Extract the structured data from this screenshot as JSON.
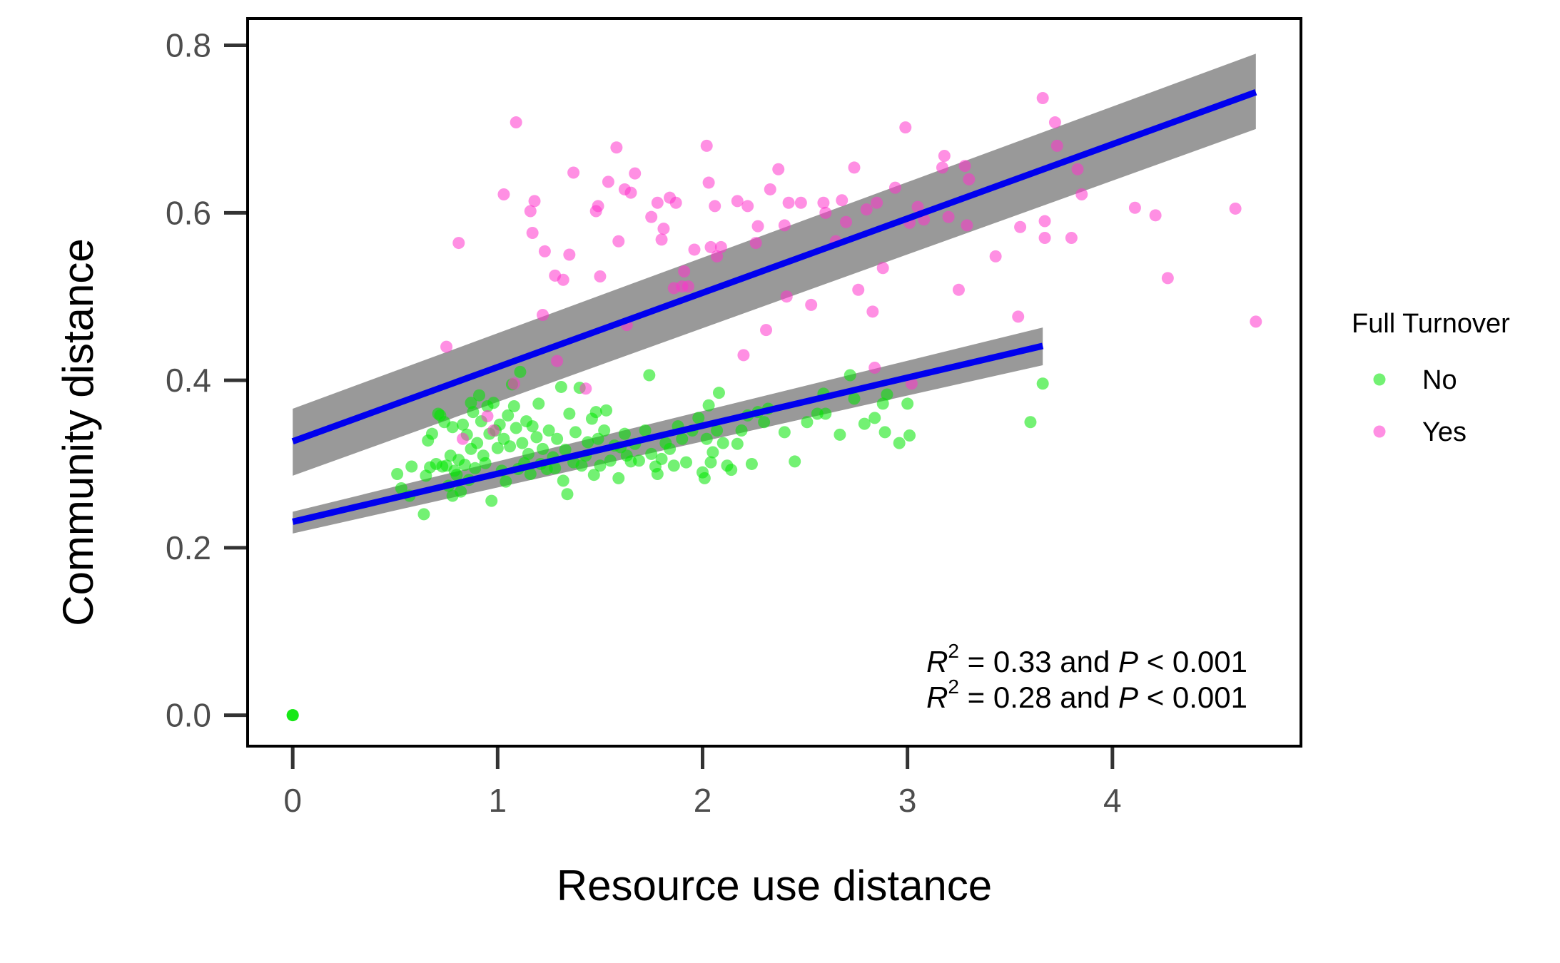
{
  "chart_data": {
    "type": "scatter",
    "xlabel": "Resource use distance",
    "ylabel": "Community distance",
    "xlim": [
      -0.22,
      4.92
    ],
    "ylim": [
      -0.037,
      0.832
    ],
    "xticks": [
      0,
      1,
      2,
      3,
      4
    ],
    "yticks": [
      0.0,
      0.2,
      0.4,
      0.6,
      0.8
    ],
    "xtick_labels": [
      "0",
      "1",
      "2",
      "3",
      "4"
    ],
    "ytick_labels": [
      "0.0",
      "0.2",
      "0.4",
      "0.6",
      "0.8"
    ],
    "grid": false,
    "legend": {
      "title": "Full Turnover",
      "placement": "right",
      "entries": [
        {
          "label": "No",
          "color": "#00e600"
        },
        {
          "label": "Yes",
          "color": "#ff33cc"
        }
      ]
    },
    "series": [
      {
        "name": "No",
        "color": "#00e600",
        "points": [
          [
            0.0,
            0.0
          ],
          [
            0.0,
            0.0
          ],
          [
            0.0,
            0.0
          ],
          [
            0.51,
            0.288
          ],
          [
            0.53,
            0.271
          ],
          [
            0.57,
            0.262
          ],
          [
            0.58,
            0.297
          ],
          [
            0.64,
            0.24
          ],
          [
            0.65,
            0.286
          ],
          [
            0.66,
            0.328
          ],
          [
            0.67,
            0.296
          ],
          [
            0.68,
            0.336
          ],
          [
            0.7,
            0.3
          ],
          [
            0.71,
            0.36
          ],
          [
            0.72,
            0.358
          ],
          [
            0.73,
            0.297
          ],
          [
            0.74,
            0.35
          ],
          [
            0.75,
            0.298
          ],
          [
            0.76,
            0.274
          ],
          [
            0.77,
            0.31
          ],
          [
            0.78,
            0.344
          ],
          [
            0.78,
            0.262
          ],
          [
            0.79,
            0.292
          ],
          [
            0.8,
            0.287
          ],
          [
            0.81,
            0.305
          ],
          [
            0.82,
            0.267
          ],
          [
            0.83,
            0.347
          ],
          [
            0.84,
            0.299
          ],
          [
            0.85,
            0.335
          ],
          [
            0.86,
            0.281
          ],
          [
            0.87,
            0.318
          ],
          [
            0.87,
            0.373
          ],
          [
            0.88,
            0.362
          ],
          [
            0.89,
            0.295
          ],
          [
            0.9,
            0.325
          ],
          [
            0.91,
            0.382
          ],
          [
            0.92,
            0.351
          ],
          [
            0.93,
            0.31
          ],
          [
            0.94,
            0.301
          ],
          [
            0.95,
            0.369
          ],
          [
            0.96,
            0.336
          ],
          [
            0.97,
            0.256
          ],
          [
            0.98,
            0.373
          ],
          [
            0.99,
            0.34
          ],
          [
            1.0,
            0.319
          ],
          [
            1.01,
            0.347
          ],
          [
            1.02,
            0.292
          ],
          [
            1.03,
            0.33
          ],
          [
            1.04,
            0.279
          ],
          [
            1.05,
            0.358
          ],
          [
            1.06,
            0.321
          ],
          [
            1.07,
            0.395
          ],
          [
            1.08,
            0.369
          ],
          [
            1.09,
            0.343
          ],
          [
            1.1,
            0.294
          ],
          [
            1.11,
            0.41
          ],
          [
            1.12,
            0.325
          ],
          [
            1.13,
            0.301
          ],
          [
            1.14,
            0.351
          ],
          [
            1.15,
            0.312
          ],
          [
            1.16,
            0.288
          ],
          [
            1.17,
            0.345
          ],
          [
            1.19,
            0.332
          ],
          [
            1.2,
            0.372
          ],
          [
            1.21,
            0.3
          ],
          [
            1.22,
            0.318
          ],
          [
            1.24,
            0.294
          ],
          [
            1.25,
            0.34
          ],
          [
            1.27,
            0.308
          ],
          [
            1.28,
            0.295
          ],
          [
            1.29,
            0.33
          ],
          [
            1.31,
            0.392
          ],
          [
            1.32,
            0.28
          ],
          [
            1.33,
            0.317
          ],
          [
            1.34,
            0.264
          ],
          [
            1.35,
            0.36
          ],
          [
            1.37,
            0.302
          ],
          [
            1.38,
            0.338
          ],
          [
            1.4,
            0.391
          ],
          [
            1.41,
            0.298
          ],
          [
            1.43,
            0.31
          ],
          [
            1.44,
            0.326
          ],
          [
            1.46,
            0.354
          ],
          [
            1.47,
            0.287
          ],
          [
            1.48,
            0.362
          ],
          [
            1.49,
            0.33
          ],
          [
            1.5,
            0.298
          ],
          [
            1.52,
            0.34
          ],
          [
            1.53,
            0.364
          ],
          [
            1.55,
            0.304
          ],
          [
            1.57,
            0.322
          ],
          [
            1.59,
            0.283
          ],
          [
            1.6,
            0.32
          ],
          [
            1.62,
            0.336
          ],
          [
            1.63,
            0.31
          ],
          [
            1.65,
            0.303
          ],
          [
            1.67,
            0.324
          ],
          [
            1.69,
            0.304
          ],
          [
            1.72,
            0.34
          ],
          [
            1.74,
            0.406
          ],
          [
            1.75,
            0.312
          ],
          [
            1.77,
            0.297
          ],
          [
            1.78,
            0.288
          ],
          [
            1.8,
            0.306
          ],
          [
            1.82,
            0.325
          ],
          [
            1.84,
            0.318
          ],
          [
            1.86,
            0.298
          ],
          [
            1.88,
            0.345
          ],
          [
            1.9,
            0.33
          ],
          [
            1.92,
            0.302
          ],
          [
            1.95,
            0.34
          ],
          [
            1.98,
            0.355
          ],
          [
            2.0,
            0.29
          ],
          [
            2.01,
            0.283
          ],
          [
            2.02,
            0.33
          ],
          [
            2.03,
            0.37
          ],
          [
            2.04,
            0.302
          ],
          [
            2.05,
            0.314
          ],
          [
            2.07,
            0.34
          ],
          [
            2.08,
            0.385
          ],
          [
            2.1,
            0.325
          ],
          [
            2.12,
            0.298
          ],
          [
            2.14,
            0.293
          ],
          [
            2.17,
            0.324
          ],
          [
            2.19,
            0.34
          ],
          [
            2.22,
            0.358
          ],
          [
            2.24,
            0.3
          ],
          [
            2.27,
            0.362
          ],
          [
            2.3,
            0.35
          ],
          [
            2.32,
            0.366
          ],
          [
            2.4,
            0.338
          ],
          [
            2.45,
            0.303
          ],
          [
            2.51,
            0.35
          ],
          [
            2.56,
            0.36
          ],
          [
            2.59,
            0.384
          ],
          [
            2.6,
            0.36
          ],
          [
            2.67,
            0.335
          ],
          [
            2.72,
            0.406
          ],
          [
            2.74,
            0.378
          ],
          [
            2.79,
            0.348
          ],
          [
            2.84,
            0.355
          ],
          [
            2.88,
            0.372
          ],
          [
            2.89,
            0.338
          ],
          [
            2.9,
            0.383
          ],
          [
            2.96,
            0.325
          ],
          [
            3.0,
            0.372
          ],
          [
            3.01,
            0.334
          ],
          [
            3.6,
            0.35
          ],
          [
            3.66,
            0.396
          ]
        ]
      },
      {
        "name": "Yes",
        "color": "#ff33cc",
        "points": [
          [
            0.75,
            0.44
          ],
          [
            0.81,
            0.564
          ],
          [
            0.83,
            0.33
          ],
          [
            0.95,
            0.357
          ],
          [
            0.98,
            0.34
          ],
          [
            1.03,
            0.622
          ],
          [
            1.08,
            0.396
          ],
          [
            1.09,
            0.708
          ],
          [
            1.16,
            0.602
          ],
          [
            1.17,
            0.576
          ],
          [
            1.18,
            0.614
          ],
          [
            1.22,
            0.478
          ],
          [
            1.23,
            0.554
          ],
          [
            1.28,
            0.525
          ],
          [
            1.29,
            0.423
          ],
          [
            1.32,
            0.52
          ],
          [
            1.35,
            0.55
          ],
          [
            1.37,
            0.648
          ],
          [
            1.43,
            0.39
          ],
          [
            1.48,
            0.602
          ],
          [
            1.49,
            0.608
          ],
          [
            1.5,
            0.524
          ],
          [
            1.54,
            0.637
          ],
          [
            1.58,
            0.678
          ],
          [
            1.59,
            0.566
          ],
          [
            1.62,
            0.628
          ],
          [
            1.63,
            0.466
          ],
          [
            1.65,
            0.624
          ],
          [
            1.67,
            0.647
          ],
          [
            1.75,
            0.595
          ],
          [
            1.78,
            0.612
          ],
          [
            1.8,
            0.568
          ],
          [
            1.81,
            0.581
          ],
          [
            1.84,
            0.618
          ],
          [
            1.86,
            0.51
          ],
          [
            1.87,
            0.612
          ],
          [
            1.9,
            0.512
          ],
          [
            1.91,
            0.53
          ],
          [
            1.93,
            0.512
          ],
          [
            1.96,
            0.556
          ],
          [
            2.02,
            0.68
          ],
          [
            2.03,
            0.636
          ],
          [
            2.04,
            0.559
          ],
          [
            2.06,
            0.608
          ],
          [
            2.07,
            0.548
          ],
          [
            2.09,
            0.559
          ],
          [
            2.17,
            0.614
          ],
          [
            2.2,
            0.43
          ],
          [
            2.22,
            0.608
          ],
          [
            2.26,
            0.564
          ],
          [
            2.27,
            0.584
          ],
          [
            2.31,
            0.46
          ],
          [
            2.33,
            0.628
          ],
          [
            2.37,
            0.652
          ],
          [
            2.4,
            0.585
          ],
          [
            2.41,
            0.5
          ],
          [
            2.42,
            0.612
          ],
          [
            2.48,
            0.612
          ],
          [
            2.53,
            0.49
          ],
          [
            2.59,
            0.612
          ],
          [
            2.6,
            0.6
          ],
          [
            2.65,
            0.566
          ],
          [
            2.68,
            0.615
          ],
          [
            2.7,
            0.589
          ],
          [
            2.74,
            0.654
          ],
          [
            2.76,
            0.508
          ],
          [
            2.8,
            0.604
          ],
          [
            2.83,
            0.482
          ],
          [
            2.84,
            0.415
          ],
          [
            2.85,
            0.612
          ],
          [
            2.88,
            0.534
          ],
          [
            2.94,
            0.63
          ],
          [
            2.99,
            0.702
          ],
          [
            3.01,
            0.588
          ],
          [
            3.02,
            0.396
          ],
          [
            3.05,
            0.607
          ],
          [
            3.08,
            0.592
          ],
          [
            3.17,
            0.654
          ],
          [
            3.18,
            0.668
          ],
          [
            3.2,
            0.595
          ],
          [
            3.25,
            0.508
          ],
          [
            3.28,
            0.656
          ],
          [
            3.29,
            0.585
          ],
          [
            3.3,
            0.64
          ],
          [
            3.43,
            0.548
          ],
          [
            3.54,
            0.476
          ],
          [
            3.55,
            0.583
          ],
          [
            3.66,
            0.737
          ],
          [
            3.67,
            0.59
          ],
          [
            3.67,
            0.57
          ],
          [
            3.72,
            0.708
          ],
          [
            3.73,
            0.68
          ],
          [
            3.8,
            0.57
          ],
          [
            3.83,
            0.652
          ],
          [
            3.85,
            0.622
          ],
          [
            4.11,
            0.606
          ],
          [
            4.21,
            0.597
          ],
          [
            4.27,
            0.522
          ],
          [
            4.6,
            0.605
          ],
          [
            4.7,
            0.47
          ]
        ]
      }
    ],
    "fits": [
      {
        "series": "Yes",
        "x": [
          0.0,
          4.7
        ],
        "y": [
          0.327,
          0.744
        ],
        "ci_lower": [
          0.286,
          0.7
        ],
        "ci_upper": [
          0.366,
          0.79
        ],
        "color": "#0000ee",
        "band_color": "#999999"
      },
      {
        "series": "No",
        "x": [
          0.0,
          3.66
        ],
        "y": [
          0.231,
          0.441
        ],
        "ci_lower": [
          0.217,
          0.418
        ],
        "ci_upper": [
          0.243,
          0.463
        ],
        "color": "#0000ee",
        "band_color": "#999999"
      }
    ],
    "annotations": [
      {
        "var": "R",
        "sup": "2",
        "text": " = 0.33 and ",
        "ivar": "P",
        "rest": " < 0.001"
      },
      {
        "var": "R",
        "sup": "2",
        "text": " = 0.28 and ",
        "ivar": "P",
        "rest": " < 0.001"
      }
    ]
  }
}
